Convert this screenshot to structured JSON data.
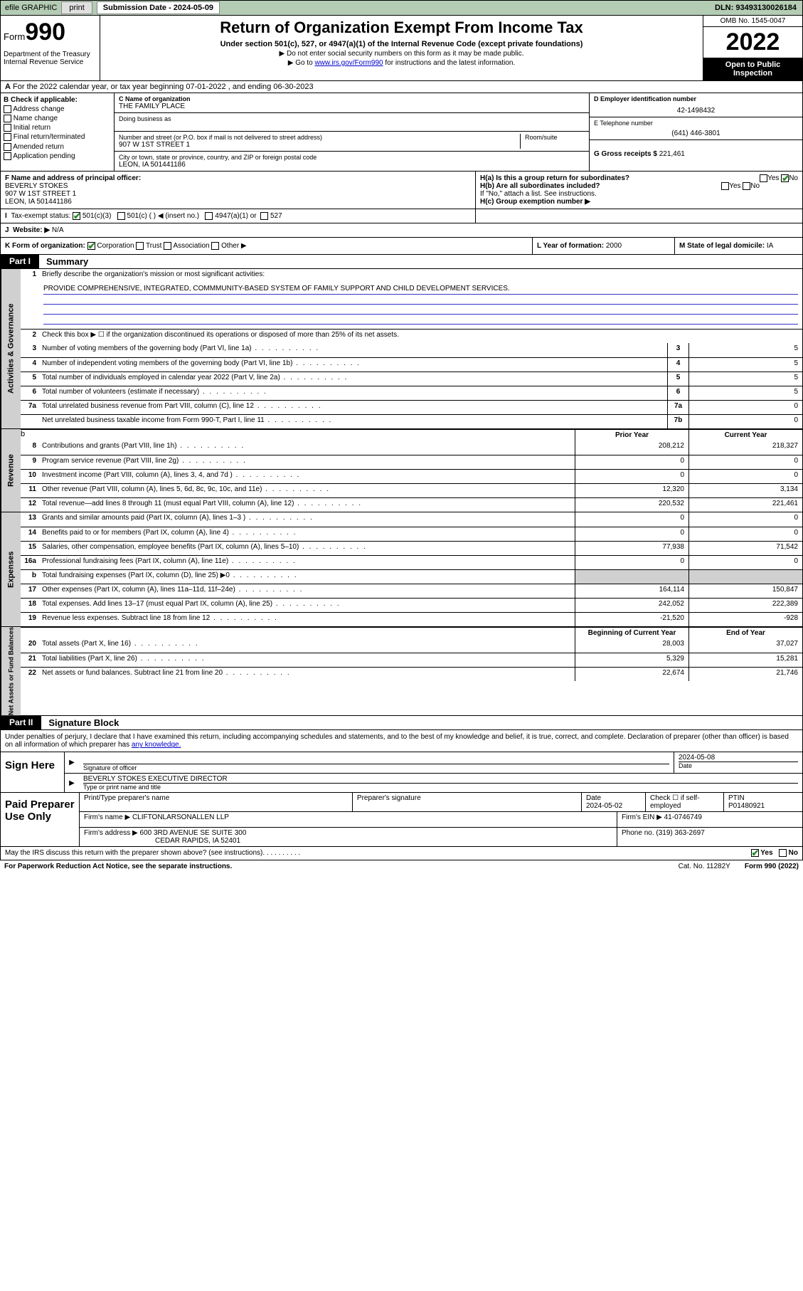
{
  "topbar": {
    "efile_label": "efile GRAPHIC",
    "print_btn": "print",
    "submission_label": "Submission Date - 2024-05-09",
    "dln": "DLN: 93493130026184"
  },
  "header": {
    "form_prefix": "Form",
    "form_number": "990",
    "title": "Return of Organization Exempt From Income Tax",
    "subtitle": "Under section 501(c), 527, or 4947(a)(1) of the Internal Revenue Code (except private foundations)",
    "line1": "▶ Do not enter social security numbers on this form as it may be made public.",
    "line2_pre": "▶ Go to ",
    "line2_link": "www.irs.gov/Form990",
    "line2_post": " for instructions and the latest information.",
    "omb": "OMB No. 1545-0047",
    "year": "2022",
    "inspection": "Open to Public Inspection",
    "dept": "Department of the Treasury Internal Revenue Service"
  },
  "rowA": "For the 2022 calendar year, or tax year beginning 07-01-2022   , and ending 06-30-2023",
  "colB": {
    "label": "B Check if applicable:",
    "opts": [
      "Address change",
      "Name change",
      "Initial return",
      "Final return/terminated",
      "Amended return",
      "Application pending"
    ]
  },
  "colC": {
    "name_label": "C Name of organization",
    "name": "THE FAMILY PLACE",
    "dba_label": "Doing business as",
    "dba": "",
    "addr_label": "Number and street (or P.O. box if mail is not delivered to street address)",
    "room_label": "Room/suite",
    "addr": "907 W 1ST STREET 1",
    "city_label": "City or town, state or province, country, and ZIP or foreign postal code",
    "city": "LEON, IA  501441186"
  },
  "colD": {
    "ein_label": "D Employer identification number",
    "ein": "42-1498432",
    "tel_label": "E Telephone number",
    "tel": "(641) 446-3801",
    "gross_label": "G Gross receipts $",
    "gross": "221,461"
  },
  "rowF": {
    "f_label": "F  Name and address of principal officer:",
    "f_name": "BEVERLY STOKES",
    "f_addr1": "907 W 1ST STREET 1",
    "f_addr2": "LEON, IA  501441186",
    "ha_label": "H(a)  Is this a group return for subordinates?",
    "hb_label": "H(b)  Are all subordinates included?",
    "hb_note": "If \"No,\" attach a list. See instructions.",
    "hc_label": "H(c)  Group exemption number ▶",
    "yes": "Yes",
    "no": "No"
  },
  "rowI": {
    "label": "Tax-exempt status:",
    "opts": [
      "501(c)(3)",
      "501(c) (  ) ◀ (insert no.)",
      "4947(a)(1) or",
      "527"
    ]
  },
  "rowJ": {
    "label": "Website: ▶",
    "value": "N/A"
  },
  "rowK": {
    "k_label": "K Form of organization:",
    "k_opts": [
      "Corporation",
      "Trust",
      "Association",
      "Other ▶"
    ],
    "l_label": "L Year of formation:",
    "l_val": "2000",
    "m_label": "M State of legal domicile:",
    "m_val": "IA"
  },
  "part1": {
    "hdr": "Part I",
    "title": "Summary"
  },
  "activities": {
    "side": "Activities & Governance",
    "l1_label": "Briefly describe the organization's mission or most significant activities:",
    "l1_text": "PROVIDE COMPREHENSIVE, INTEGRATED, COMMMUNITY-BASED SYSTEM OF FAMILY SUPPORT AND CHILD DEVELOPMENT SERVICES.",
    "l2": "Check this box ▶ ☐  if the organization discontinued its operations or disposed of more than 25% of its net assets.",
    "lines": [
      {
        "n": "3",
        "t": "Number of voting members of the governing body (Part VI, line 1a)",
        "box": "3",
        "v": "5"
      },
      {
        "n": "4",
        "t": "Number of independent voting members of the governing body (Part VI, line 1b)",
        "box": "4",
        "v": "5"
      },
      {
        "n": "5",
        "t": "Total number of individuals employed in calendar year 2022 (Part V, line 2a)",
        "box": "5",
        "v": "5"
      },
      {
        "n": "6",
        "t": "Total number of volunteers (estimate if necessary)",
        "box": "6",
        "v": "5"
      },
      {
        "n": "7a",
        "t": "Total unrelated business revenue from Part VIII, column (C), line 12",
        "box": "7a",
        "v": "0"
      },
      {
        "n": "",
        "t": "Net unrelated business taxable income from Form 990-T, Part I, line 11",
        "box": "7b",
        "v": "0"
      }
    ]
  },
  "revenue": {
    "side": "Revenue",
    "hdr_prior": "Prior Year",
    "hdr_curr": "Current Year",
    "lines": [
      {
        "n": "8",
        "t": "Contributions and grants (Part VIII, line 1h)",
        "p": "208,212",
        "c": "218,327"
      },
      {
        "n": "9",
        "t": "Program service revenue (Part VIII, line 2g)",
        "p": "0",
        "c": "0"
      },
      {
        "n": "10",
        "t": "Investment income (Part VIII, column (A), lines 3, 4, and 7d )",
        "p": "0",
        "c": "0"
      },
      {
        "n": "11",
        "t": "Other revenue (Part VIII, column (A), lines 5, 6d, 8c, 9c, 10c, and 11e)",
        "p": "12,320",
        "c": "3,134"
      },
      {
        "n": "12",
        "t": "Total revenue—add lines 8 through 11 (must equal Part VIII, column (A), line 12)",
        "p": "220,532",
        "c": "221,461"
      }
    ]
  },
  "expenses": {
    "side": "Expenses",
    "lines": [
      {
        "n": "13",
        "t": "Grants and similar amounts paid (Part IX, column (A), lines 1–3 )",
        "p": "0",
        "c": "0"
      },
      {
        "n": "14",
        "t": "Benefits paid to or for members (Part IX, column (A), line 4)",
        "p": "0",
        "c": "0"
      },
      {
        "n": "15",
        "t": "Salaries, other compensation, employee benefits (Part IX, column (A), lines 5–10)",
        "p": "77,938",
        "c": "71,542"
      },
      {
        "n": "16a",
        "t": "Professional fundraising fees (Part IX, column (A), line 11e)",
        "p": "0",
        "c": "0"
      },
      {
        "n": "b",
        "t": "Total fundraising expenses (Part IX, column (D), line 25) ▶0",
        "p": "",
        "c": "",
        "shade": true
      },
      {
        "n": "17",
        "t": "Other expenses (Part IX, column (A), lines 11a–11d, 11f–24e)",
        "p": "164,114",
        "c": "150,847"
      },
      {
        "n": "18",
        "t": "Total expenses. Add lines 13–17 (must equal Part IX, column (A), line 25)",
        "p": "242,052",
        "c": "222,389"
      },
      {
        "n": "19",
        "t": "Revenue less expenses. Subtract line 18 from line 12",
        "p": "-21,520",
        "c": "-928"
      }
    ]
  },
  "netassets": {
    "side": "Net Assets or Fund Balances",
    "hdr_begin": "Beginning of Current Year",
    "hdr_end": "End of Year",
    "lines": [
      {
        "n": "20",
        "t": "Total assets (Part X, line 16)",
        "p": "28,003",
        "c": "37,027"
      },
      {
        "n": "21",
        "t": "Total liabilities (Part X, line 26)",
        "p": "5,329",
        "c": "15,281"
      },
      {
        "n": "22",
        "t": "Net assets or fund balances. Subtract line 21 from line 20",
        "p": "22,674",
        "c": "21,746"
      }
    ]
  },
  "part2": {
    "hdr": "Part II",
    "title": "Signature Block"
  },
  "sig": {
    "intro_pre": "Under penalties of perjury, I declare that I have examined this return, including accompanying schedules and statements, and to the best of my knowledge and belief, it is true, correct, and complete. Declaration of preparer (other than officer) is based on all information of which preparer has ",
    "intro_link": "any knowledge.",
    "sign_here": "Sign Here",
    "sig_officer": "Signature of officer",
    "date_label": "Date",
    "date": "2024-05-08",
    "name": "BEVERLY STOKES  EXECUTIVE DIRECTOR",
    "name_label": "Type or print name and title"
  },
  "prep": {
    "left": "Paid Preparer Use Only",
    "h_name": "Print/Type preparer's name",
    "h_sig": "Preparer's signature",
    "h_date": "Date",
    "date": "2024-05-02",
    "check_label": "Check ☐ if self-employed",
    "ptin_label": "PTIN",
    "ptin": "P01480921",
    "firm_name_label": "Firm's name    ▶",
    "firm_name": "CLIFTONLARSONALLEN LLP",
    "firm_ein_label": "Firm's EIN ▶",
    "firm_ein": "41-0746749",
    "firm_addr_label": "Firm's address ▶",
    "firm_addr1": "600 3RD AVENUE SE SUITE 300",
    "firm_addr2": "CEDAR RAPIDS, IA  52401",
    "phone_label": "Phone no.",
    "phone": "(319) 363-2697"
  },
  "footer": {
    "discuss": "May the IRS discuss this return with the preparer shown above? (see instructions)",
    "yes": "Yes",
    "no": "No",
    "paperwork": "For Paperwork Reduction Act Notice, see the separate instructions.",
    "cat": "Cat. No. 11282Y",
    "form": "Form 990 (2022)"
  }
}
